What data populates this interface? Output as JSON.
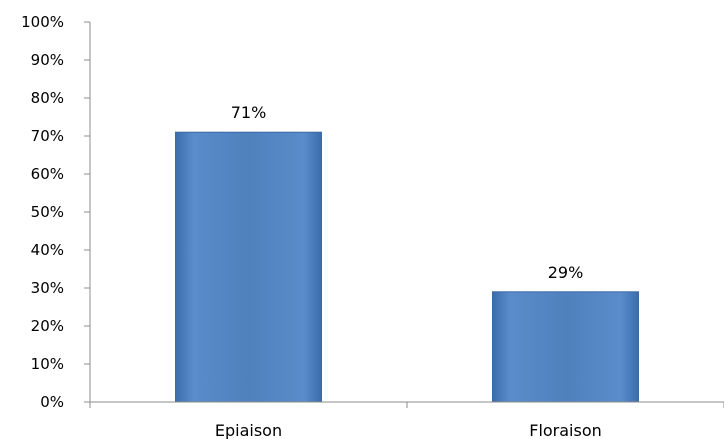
{
  "chart_data": {
    "type": "bar",
    "categories": [
      "Epiaison",
      "Floraison"
    ],
    "values": [
      71,
      29
    ],
    "data_labels": [
      "71%",
      "29%"
    ],
    "title": "",
    "xlabel": "",
    "ylabel": "",
    "ylim": [
      0,
      100
    ],
    "y_ticks": [
      0,
      10,
      20,
      30,
      40,
      50,
      60,
      70,
      80,
      90,
      100
    ],
    "y_tick_labels": [
      "0%",
      "10%",
      "20%",
      "30%",
      "40%",
      "50%",
      "60%",
      "70%",
      "80%",
      "90%",
      "100%"
    ],
    "grid": false,
    "legend": "none",
    "bar_color": "#4f81bd",
    "bar_edge_color": "#3a6aa6"
  }
}
